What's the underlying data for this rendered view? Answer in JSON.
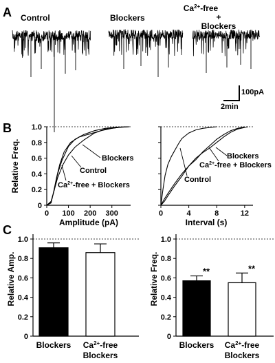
{
  "panel_a": {
    "letter": "A",
    "trace_labels": [
      "Control",
      "Blockers"
    ],
    "ca_label": {
      "ca": "Ca",
      "sup": "2+",
      "suffix": "-free",
      "plus": "+",
      "blockers": "Blockers"
    },
    "scale_bar": {
      "amplitude": "100pA",
      "time": "2min"
    }
  },
  "panel_b": {
    "letter": "B",
    "ylabel": "Relative Freq.",
    "amp": {
      "xlabel": "Amplitude (pA)",
      "xticks": [
        "0",
        "100",
        "200",
        "300"
      ],
      "yticks": [
        "0",
        "0.2",
        "0.4",
        "0.6",
        "0.8",
        "1.0"
      ],
      "labels": {
        "blockers": "Blockers",
        "control": "Control",
        "ca": "Ca",
        "sup": "2+",
        "suffix": "-free + Blockers"
      }
    },
    "interval": {
      "xlabel": "Interval (s)",
      "xticks": [
        "0",
        "4",
        "8",
        "12"
      ],
      "labels": {
        "blockers": "Blockers",
        "control": "Control",
        "ca": "Ca",
        "sup": "2+",
        "suffix": "-free + Blockers"
      }
    }
  },
  "panel_c": {
    "letter": "C",
    "amp": {
      "ylabel": "Relative Amp.",
      "yticks": [
        "0",
        "0.2",
        "0.4",
        "0.6",
        "0.8",
        "1.0"
      ],
      "cat1": "Blockers",
      "cat2": {
        "ca": "Ca",
        "sup": "2+",
        "suffix": "-free",
        "line2": "Blockers"
      }
    },
    "freq": {
      "ylabel": "Relative Freq.",
      "yticks": [
        "0",
        "0.2",
        "0.4",
        "0.6",
        "0.8",
        "1.0"
      ],
      "cat1": "Blockers",
      "cat2": {
        "ca": "Ca",
        "sup": "2+",
        "suffix": "-free",
        "line2": "Blockers"
      },
      "sig": [
        "**",
        "**"
      ]
    }
  },
  "chart_data": [
    {
      "type": "line",
      "panel": "B-left",
      "xlabel": "Amplitude (pA)",
      "ylabel": "Relative Freq.",
      "xlim": [
        0,
        380
      ],
      "ylim": [
        0,
        1.0
      ],
      "series": [
        {
          "name": "Control",
          "x": [
            0,
            20,
            35,
            50,
            75,
            100,
            130,
            170,
            220,
            270,
            330,
            380
          ],
          "y": [
            0,
            0.05,
            0.2,
            0.35,
            0.52,
            0.64,
            0.74,
            0.83,
            0.92,
            0.97,
            0.99,
            1.0
          ]
        },
        {
          "name": "Blockers",
          "x": [
            0,
            20,
            30,
            45,
            60,
            80,
            110,
            150,
            200,
            250,
            300,
            340,
            380
          ],
          "y": [
            0,
            0.03,
            0.15,
            0.35,
            0.52,
            0.68,
            0.8,
            0.87,
            0.91,
            0.95,
            0.98,
            0.995,
            1.0
          ]
        },
        {
          "name": "Ca2+-free + Blockers",
          "x": [
            0,
            20,
            35,
            50,
            70,
            100,
            130,
            170,
            220,
            270,
            320,
            380
          ],
          "y": [
            0,
            0.04,
            0.2,
            0.4,
            0.57,
            0.75,
            0.84,
            0.9,
            0.95,
            0.98,
            0.995,
            1.0
          ]
        }
      ]
    },
    {
      "type": "line",
      "panel": "B-right",
      "xlabel": "Interval (s)",
      "ylabel": "Relative Freq.",
      "xlim": [
        0,
        13
      ],
      "ylim": [
        0,
        1.0
      ],
      "series": [
        {
          "name": "Control",
          "x": [
            0,
            0.3,
            0.6,
            1.0,
            1.5,
            2.0,
            2.5,
            3.0,
            4.0,
            5.0,
            6.0,
            7.0,
            8.0
          ],
          "y": [
            0,
            0.2,
            0.38,
            0.52,
            0.62,
            0.7,
            0.78,
            0.85,
            0.92,
            0.96,
            0.98,
            0.99,
            1.0
          ]
        },
        {
          "name": "Blockers",
          "x": [
            0,
            0.5,
            1.0,
            2.0,
            3.0,
            4.0,
            5.0,
            6.0,
            7.0,
            8.0,
            9.0,
            10.0,
            11.0,
            12.0
          ],
          "y": [
            0,
            0.08,
            0.15,
            0.28,
            0.4,
            0.5,
            0.58,
            0.68,
            0.76,
            0.84,
            0.9,
            0.95,
            0.98,
            1.0
          ]
        },
        {
          "name": "Ca2+-free + Blockers",
          "x": [
            0,
            0.5,
            1.0,
            2.0,
            3.0,
            4.0,
            5.0,
            6.0,
            7.0,
            8.0,
            9.0,
            10.0,
            11.0,
            12.5
          ],
          "y": [
            0,
            0.05,
            0.12,
            0.25,
            0.37,
            0.5,
            0.6,
            0.67,
            0.73,
            0.8,
            0.87,
            0.93,
            0.97,
            1.0
          ]
        }
      ]
    },
    {
      "type": "bar",
      "panel": "C-left",
      "ylabel": "Relative Amp.",
      "categories": [
        "Blockers",
        "Ca2+-free + Blockers"
      ],
      "values": [
        0.91,
        0.86
      ],
      "errors": [
        0.05,
        0.09
      ],
      "colors": [
        "#000000",
        "#ffffff"
      ],
      "ylim": [
        0,
        1.0
      ],
      "reference_line": 1.0
    },
    {
      "type": "bar",
      "panel": "C-right",
      "ylabel": "Relative Freq.",
      "categories": [
        "Blockers",
        "Ca2+-free + Blockers"
      ],
      "values": [
        0.57,
        0.55
      ],
      "errors": [
        0.05,
        0.1
      ],
      "colors": [
        "#000000",
        "#ffffff"
      ],
      "ylim": [
        0,
        1.0
      ],
      "reference_line": 1.0
    }
  ]
}
